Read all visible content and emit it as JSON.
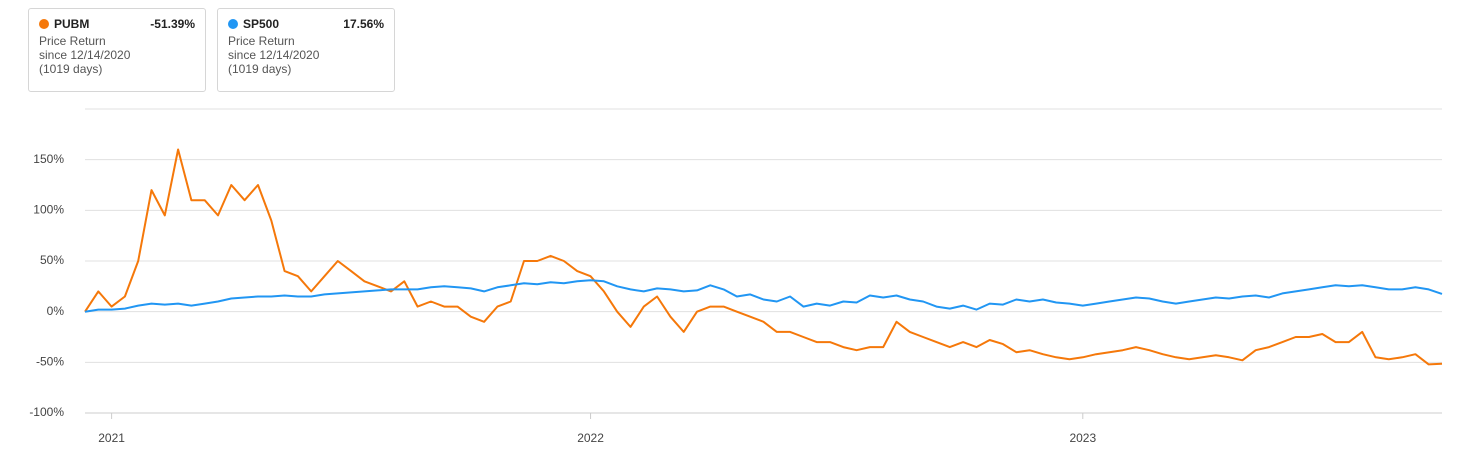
{
  "chart_data": {
    "type": "line",
    "legend": [
      {
        "name": "PUBM",
        "change": "-51.39%",
        "measure": "Price Return",
        "since": "since 12/14/2020",
        "days": "(1019 days)"
      },
      {
        "name": "SP500",
        "change": "17.56%",
        "measure": "Price Return",
        "since": "since 12/14/2020",
        "days": "(1019 days)"
      }
    ],
    "categories": [
      null,
      null,
      "2021",
      null,
      null,
      null,
      null,
      null,
      null,
      null,
      null,
      null,
      null,
      null,
      null,
      null,
      null,
      null,
      null,
      null,
      null,
      null,
      null,
      null,
      null,
      null,
      null,
      null,
      null,
      null,
      null,
      null,
      null,
      null,
      null,
      null,
      null,
      null,
      "2022",
      null,
      null,
      null,
      null,
      null,
      null,
      null,
      null,
      null,
      null,
      null,
      null,
      null,
      null,
      null,
      null,
      null,
      null,
      null,
      null,
      null,
      null,
      null,
      null,
      null,
      null,
      null,
      null,
      null,
      null,
      null,
      null,
      null,
      null,
      null,
      null,
      "2023",
      null,
      null,
      null,
      null,
      null,
      null,
      null,
      null,
      null,
      null,
      null,
      null,
      null,
      null,
      null,
      null,
      null,
      null,
      null,
      null,
      null,
      null,
      null,
      null,
      null,
      null,
      null
    ],
    "series": [
      {
        "name": "PUBM",
        "color": "#f5780a",
        "values": [
          0,
          20,
          5,
          15,
          50,
          120,
          95,
          160,
          110,
          110,
          95,
          125,
          110,
          125,
          90,
          40,
          35,
          20,
          35,
          50,
          40,
          30,
          25,
          20,
          30,
          5,
          10,
          5,
          5,
          -5,
          -10,
          5,
          10,
          50,
          50,
          55,
          50,
          40,
          35,
          20,
          0,
          -15,
          5,
          15,
          -5,
          -20,
          0,
          5,
          5,
          0,
          -5,
          -10,
          -20,
          -20,
          -25,
          -30,
          -30,
          -35,
          -38,
          -35,
          -35,
          -10,
          -20,
          -25,
          -30,
          -35,
          -30,
          -35,
          -28,
          -32,
          -40,
          -38,
          -42,
          -45,
          -47,
          -45,
          -42,
          -40,
          -38,
          -35,
          -38,
          -42,
          -45,
          -47,
          -45,
          -43,
          -45,
          -48,
          -38,
          -35,
          -30,
          -25,
          -25,
          -22,
          -30,
          -30,
          -20,
          -45,
          -47,
          -45,
          -42,
          -52,
          -51.39
        ]
      },
      {
        "name": "SP500",
        "color": "#2196f3",
        "values": [
          0,
          2,
          2,
          3,
          6,
          8,
          7,
          8,
          6,
          8,
          10,
          13,
          14,
          15,
          15,
          16,
          15,
          15,
          17,
          18,
          19,
          20,
          21,
          22,
          22,
          22,
          24,
          25,
          24,
          23,
          20,
          24,
          26,
          28,
          27,
          29,
          28,
          30,
          31,
          30,
          25,
          22,
          20,
          23,
          22,
          20,
          21,
          26,
          22,
          15,
          17,
          12,
          10,
          15,
          5,
          8,
          6,
          10,
          9,
          16,
          14,
          16,
          12,
          10,
          5,
          3,
          6,
          2,
          8,
          7,
          12,
          10,
          12,
          9,
          8,
          6,
          8,
          10,
          12,
          14,
          13,
          10,
          8,
          10,
          12,
          14,
          13,
          15,
          16,
          14,
          18,
          20,
          22,
          24,
          26,
          25,
          26,
          24,
          22,
          22,
          24,
          22,
          17.56
        ]
      }
    ],
    "ylim": [
      -100,
      200
    ],
    "yticks": [
      {
        "value": -100,
        "label": "-100%"
      },
      {
        "value": -50,
        "label": "-50%"
      },
      {
        "value": 0,
        "label": "0%"
      },
      {
        "value": 50,
        "label": "50%"
      },
      {
        "value": 100,
        "label": "100%"
      },
      {
        "value": 150,
        "label": "150%"
      }
    ],
    "grid": true
  }
}
